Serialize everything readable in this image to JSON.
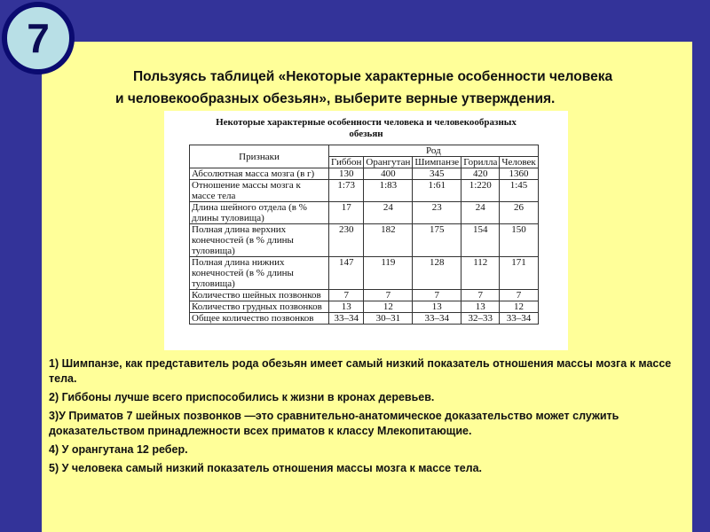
{
  "slide_number": "7",
  "title_line1": "Пользуясь таблицей «Некоторые характерные особенности человека",
  "title_line2": "и человекообразных обезьян», выберите верные утверждения.",
  "table": {
    "caption_line1": "Некоторые характерные особенности человека и человекообразных",
    "caption_line2": "обезьян",
    "feature_header": "Признаки",
    "group_header": "Род",
    "columns": [
      "Гиббон",
      "Орангутан",
      "Шимпанзе",
      "Горилла",
      "Человек"
    ],
    "rows": [
      {
        "feature": "Абсолютная масса мозга (в г)",
        "values": [
          "130",
          "400",
          "345",
          "420",
          "1360"
        ]
      },
      {
        "feature": "Отношение массы мозга к массе тела",
        "values": [
          "1:73",
          "1:83",
          "1:61",
          "1:220",
          "1:45"
        ]
      },
      {
        "feature": "Длина шейного отдела (в % длины туловища)",
        "values": [
          "17",
          "24",
          "23",
          "24",
          "26"
        ]
      },
      {
        "feature": "Полная длина верхних конечностей (в % длины туловища)",
        "values": [
          "230",
          "182",
          "175",
          "154",
          "150"
        ]
      },
      {
        "feature": "Полная длина нижних конечностей (в % длины туловища)",
        "values": [
          "147",
          "119",
          "128",
          "112",
          "171"
        ]
      },
      {
        "feature": "Количество шейных позвонков",
        "values": [
          "7",
          "7",
          "7",
          "7",
          "7"
        ]
      },
      {
        "feature": "Количество грудных позвонков",
        "values": [
          "13",
          "12",
          "13",
          "13",
          "12"
        ]
      },
      {
        "feature": "Общее количество позвонков",
        "values": [
          "33–34",
          "30–31",
          "33–34",
          "32–33",
          "33–34"
        ]
      }
    ]
  },
  "statements": [
    "1) Шимпанзе, как представитель рода обезьян имеет самый низкий показатель отношения массы мозга к массе тела.",
    "2) Гиббоны лучше всего приспособились к жизни в кронах деревьев.",
    "3)У Приматов 7 шейных позвонков —это сравнительно-анатомическое доказательство может служить доказательством принадлежности всех приматов к классу Млекопитающие.",
    "4) У орангутана 12 ребер.",
    "5) У человека самый низкий показатель отношения массы мозга к массе тела."
  ],
  "colors": {
    "background": "#333399",
    "panel": "#ffff99",
    "badge_fill": "#b8dfe6",
    "badge_border": "#0b0b70"
  }
}
